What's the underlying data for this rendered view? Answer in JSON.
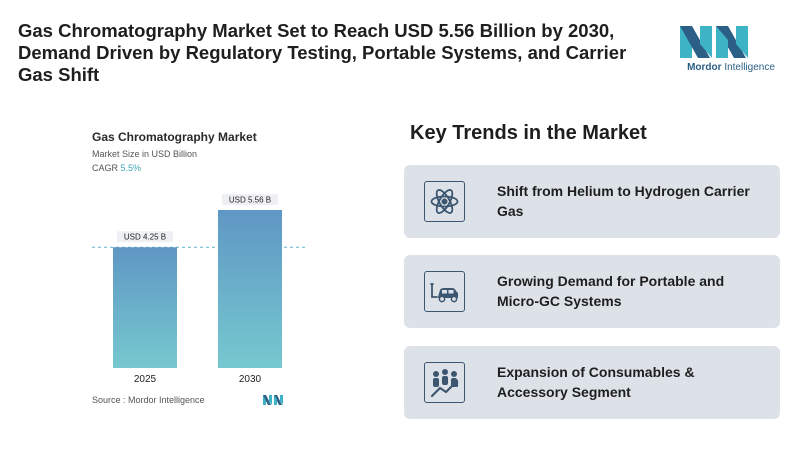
{
  "headline": "Gas Chromatography Market Set to Reach USD 5.56 Billion by 2030, Demand Driven by Regulatory Testing, Portable Systems, and Carrier Gas Shift",
  "logo": {
    "brand": "Mordor",
    "suffix": "Intelligence",
    "colors": [
      "#3fb3c6",
      "#2b5f86"
    ]
  },
  "chart_data": {
    "type": "bar",
    "title": "Gas Chromatography Market",
    "subtitle": "Market Size in USD Billion",
    "cagr_label": "CAGR",
    "cagr_value": "5.5%",
    "categories": [
      "2025",
      "2030"
    ],
    "values": [
      4.25,
      5.56
    ],
    "data_labels": [
      "USD 4.25 B",
      "USD 5.56 B"
    ],
    "ylim": [
      0,
      5.56
    ],
    "grid": false,
    "reference_line": 4.25,
    "bar_gradient": [
      "#5f97c4",
      "#76c8cf"
    ],
    "source": "Source :  Mordor Intelligence"
  },
  "trends": {
    "title": "Key Trends in the Market",
    "items": [
      {
        "icon": "atom-icon",
        "label": "Shift from Helium to Hydrogen Carrier Gas"
      },
      {
        "icon": "ev-car-icon",
        "label": "Growing Demand for Portable and Micro-GC Systems"
      },
      {
        "icon": "growth-people-icon",
        "label": "Expansion of Consumables & Accessory Segment"
      }
    ]
  }
}
